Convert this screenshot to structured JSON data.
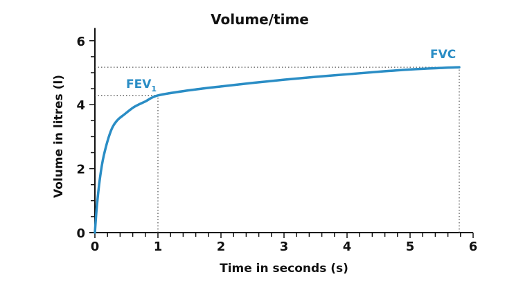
{
  "chart_data": {
    "type": "line",
    "title": "Volume/time",
    "xlabel": "Time in seconds (s)",
    "ylabel": "Volume in litres (l)",
    "xlim": [
      0,
      6
    ],
    "ylim": [
      0,
      6.4
    ],
    "x_ticks": [
      "0",
      "1",
      "2",
      "3",
      "4",
      "5",
      "6"
    ],
    "y_ticks": [
      "0",
      "2",
      "4",
      "6"
    ],
    "x_minor_step": 0.2,
    "y_minor_step": 0.5,
    "grid": false,
    "series": [
      {
        "name": "Volume",
        "color": "#2a8dc5",
        "x": [
          0,
          0.03,
          0.08,
          0.14,
          0.25,
          0.35,
          0.47,
          0.6,
          0.69,
          0.8,
          1.0,
          1.5,
          2.0,
          2.5,
          3.0,
          3.5,
          4.0,
          4.5,
          5.0,
          5.5,
          5.78
        ],
        "values": [
          0,
          0.8,
          1.7,
          2.4,
          3.16,
          3.5,
          3.7,
          3.9,
          4.0,
          4.1,
          4.29,
          4.45,
          4.57,
          4.68,
          4.78,
          4.87,
          4.95,
          5.03,
          5.1,
          5.15,
          5.17
        ]
      }
    ],
    "annotations": [
      {
        "label": "FEV",
        "subscript": "1",
        "x": 1.0,
        "y": 4.29
      },
      {
        "label": "FVC",
        "x": 5.78,
        "y": 5.17
      }
    ],
    "reference_lines": [
      {
        "type": "horizontal",
        "y": 4.29,
        "from_x": 0,
        "to_x": 1.0,
        "style": "dotted"
      },
      {
        "type": "vertical",
        "x": 1.0,
        "from_y": 0,
        "to_y": 4.29,
        "style": "dotted"
      },
      {
        "type": "horizontal",
        "y": 5.17,
        "from_x": 0,
        "to_x": 5.78,
        "style": "dotted"
      },
      {
        "type": "vertical",
        "x": 5.78,
        "from_y": 0,
        "to_y": 5.17,
        "style": "dotted"
      }
    ]
  }
}
